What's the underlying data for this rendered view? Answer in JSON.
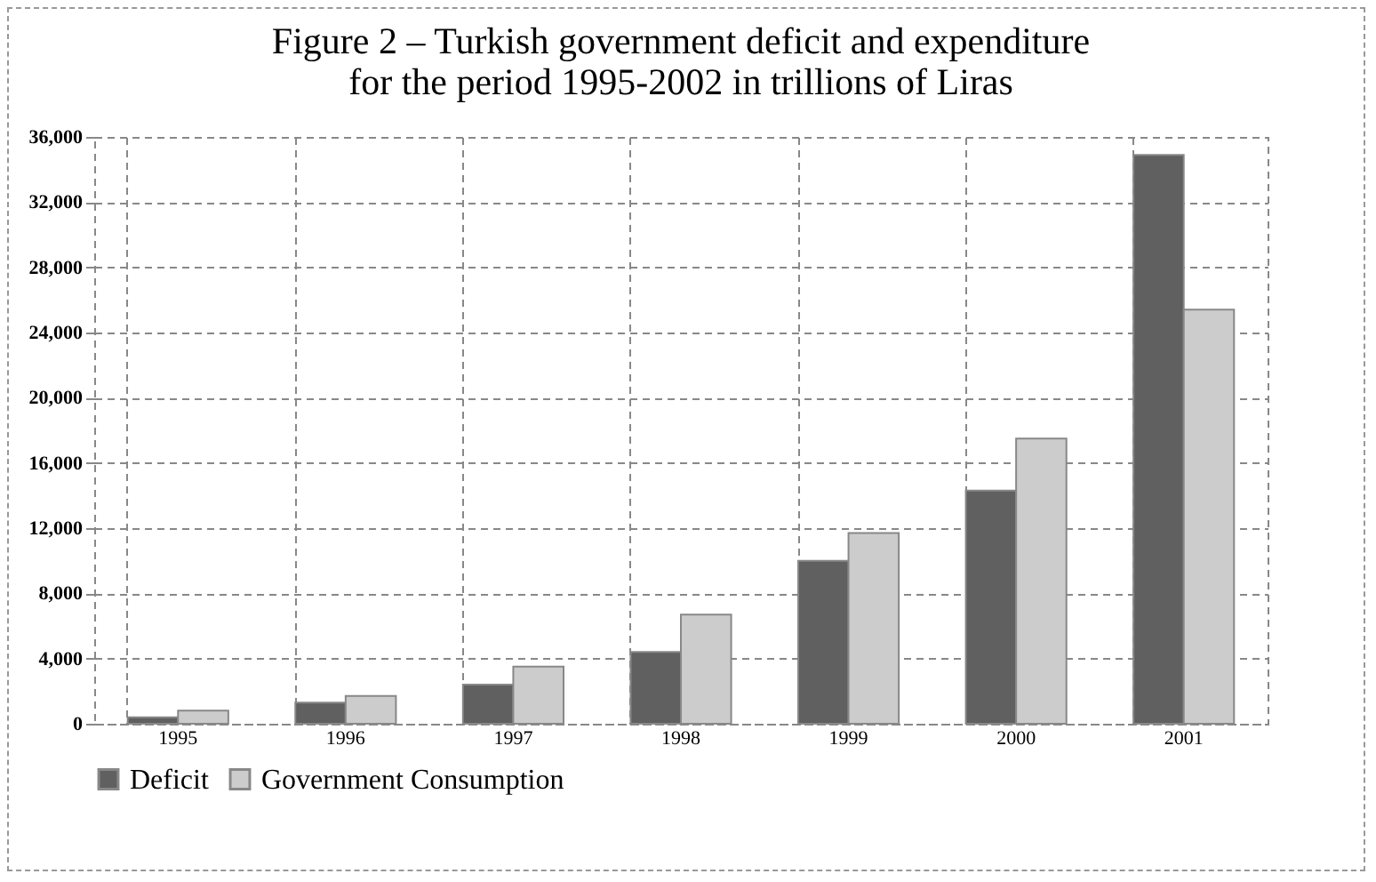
{
  "chart_data": {
    "type": "bar",
    "title": [
      "Figure 2 – Turkish government deficit and expenditure",
      "for the period 1995-2002 in trillions of Liras"
    ],
    "categories": [
      "1995",
      "1996",
      "1997",
      "1998",
      "1999",
      "2000",
      "2001"
    ],
    "series": [
      {
        "name": "Deficit",
        "color": "#606060",
        "values": [
          400,
          1300,
          2400,
          4400,
          10000,
          14300,
          34900
        ]
      },
      {
        "name": "Government Consumption",
        "color": "#cccccc",
        "values": [
          800,
          1700,
          3500,
          6700,
          11700,
          17500,
          25400
        ]
      }
    ],
    "ylim": [
      0,
      36000
    ],
    "yticks": [
      {
        "value": 0,
        "label": "0"
      },
      {
        "value": 4000,
        "label": "4,000"
      },
      {
        "value": 8000,
        "label": "8,000"
      },
      {
        "value": 12000,
        "label": "12,000"
      },
      {
        "value": 16000,
        "label": "16,000"
      },
      {
        "value": 20000,
        "label": "20,000"
      },
      {
        "value": 24000,
        "label": "24,000"
      },
      {
        "value": 28000,
        "label": "28,000"
      },
      {
        "value": 32000,
        "label": "32,000"
      },
      {
        "value": 36000,
        "label": "36,000"
      }
    ],
    "grid": true,
    "legend": "bottom"
  }
}
